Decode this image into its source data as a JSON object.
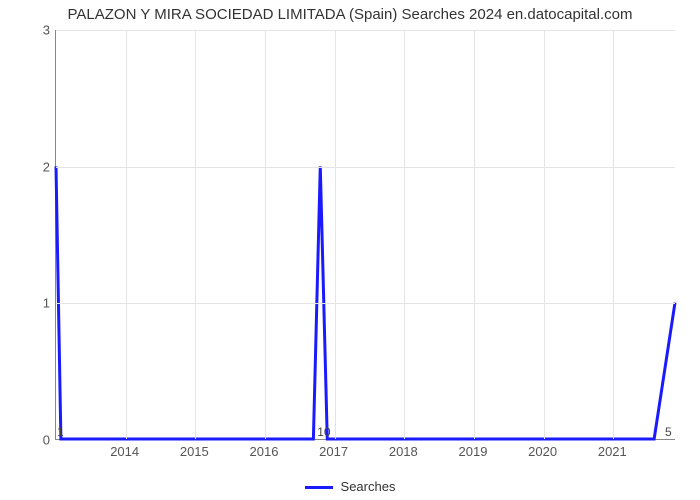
{
  "chart": {
    "type": "line",
    "title": "PALAZON Y MIRA SOCIEDAD LIMITADA (Spain) Searches 2024 en.datocapital.com",
    "title_fontsize": 15,
    "title_color": "#333333",
    "background_color": "#ffffff",
    "grid_color": "#e4e4e4",
    "axis_color": "#888888",
    "line_color": "#1a1aff",
    "line_width": 3,
    "y": {
      "label": "",
      "min": 0,
      "max": 3,
      "ticks": [
        0,
        1,
        2,
        3
      ],
      "tick_fontsize": 13,
      "tick_color": "#555555"
    },
    "x": {
      "min": 2013.0,
      "max": 2021.9,
      "ticks": [
        2014,
        2015,
        2016,
        2017,
        2018,
        2019,
        2020,
        2021
      ],
      "tick_fontsize": 13,
      "tick_color": "#555555"
    },
    "corner_labels": {
      "bottom_left": "1",
      "bottom_mid": "10",
      "bottom_right": "5",
      "fontsize": 12,
      "color": "#444444"
    },
    "legend": {
      "label": "Searches",
      "swatch_color": "#1a1aff",
      "fontsize": 13
    },
    "series": {
      "name": "Searches",
      "points": [
        [
          2013.0,
          2.0
        ],
        [
          2013.07,
          0.0
        ],
        [
          2016.7,
          0.0
        ],
        [
          2016.8,
          2.0
        ],
        [
          2016.9,
          0.0
        ],
        [
          2021.6,
          0.0
        ],
        [
          2021.9,
          1.0
        ]
      ]
    }
  }
}
